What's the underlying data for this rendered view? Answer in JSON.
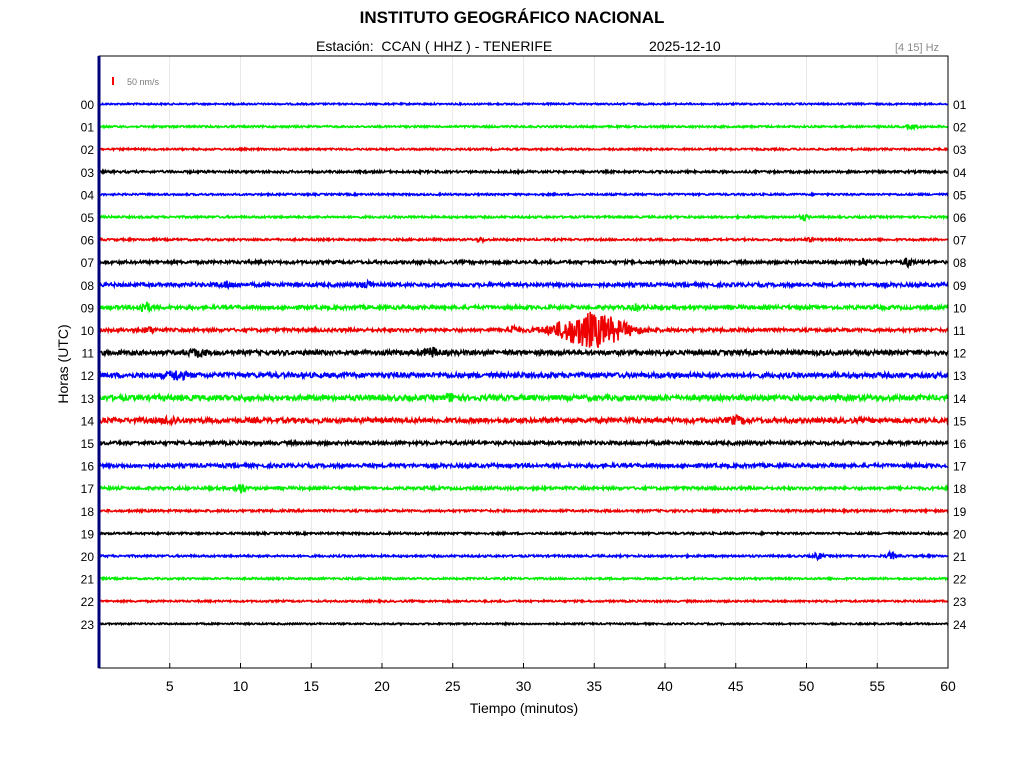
{
  "header": {
    "title": "INSTITUTO GEOGRÁFICO NACIONAL",
    "station_line": "Estación:  CCAN ( HHZ ) - TENERIFE",
    "date": "2025-12-10",
    "filter": "[4 15] Hz"
  },
  "chart_data": {
    "type": "line",
    "title": "INSTITUTO GEOGRÁFICO NACIONAL",
    "subtitle": "Estación:  CCAN ( HHZ ) - TENERIFE",
    "xlabel": "Tiempo (minutos)",
    "ylabel": "Horas (UTC)",
    "xlim": [
      0,
      60
    ],
    "x_ticks": [
      5,
      10,
      15,
      20,
      25,
      30,
      35,
      40,
      45,
      50,
      55,
      60
    ],
    "left_labels": [
      "00",
      "01",
      "02",
      "03",
      "04",
      "05",
      "06",
      "07",
      "08",
      "09",
      "10",
      "11",
      "12",
      "13",
      "14",
      "15",
      "16",
      "17",
      "18",
      "19",
      "20",
      "21",
      "22",
      "23"
    ],
    "right_labels": [
      "01",
      "02",
      "03",
      "04",
      "05",
      "06",
      "07",
      "08",
      "09",
      "10",
      "11",
      "12",
      "13",
      "14",
      "15",
      "16",
      "17",
      "18",
      "19",
      "20",
      "21",
      "22",
      "23",
      "24"
    ],
    "trace_colors": [
      "#0000ff",
      "#00ee00",
      "#ee0000",
      "#000000"
    ],
    "scale_label": "50 nm/s",
    "scale_color": "#ff0000",
    "grid": true,
    "traces": [
      {
        "hour": "00",
        "color": "#0000ff",
        "noise": 0.8,
        "bursts": []
      },
      {
        "hour": "01",
        "color": "#00ee00",
        "noise": 0.9,
        "bursts": [
          {
            "t": 57.5,
            "amp": 1.5,
            "dur": 0.4
          }
        ]
      },
      {
        "hour": "02",
        "color": "#ee0000",
        "noise": 0.9,
        "bursts": []
      },
      {
        "hour": "03",
        "color": "#000000",
        "noise": 1.1,
        "bursts": []
      },
      {
        "hour": "04",
        "color": "#0000ff",
        "noise": 0.9,
        "bursts": []
      },
      {
        "hour": "05",
        "color": "#00ee00",
        "noise": 1.0,
        "bursts": [
          {
            "t": 49.8,
            "amp": 2.5,
            "dur": 0.3
          }
        ]
      },
      {
        "hour": "06",
        "color": "#ee0000",
        "noise": 1.0,
        "bursts": [
          {
            "t": 27.0,
            "amp": 1.8,
            "dur": 0.3
          },
          {
            "t": 50.2,
            "amp": 2.0,
            "dur": 0.3
          }
        ]
      },
      {
        "hour": "07",
        "color": "#000000",
        "noise": 1.5,
        "bursts": [
          {
            "t": 54.0,
            "amp": 4.0,
            "dur": 0.3
          },
          {
            "t": 57.2,
            "amp": 4.0,
            "dur": 0.3
          }
        ]
      },
      {
        "hour": "08",
        "color": "#0000ff",
        "noise": 1.8,
        "bursts": [
          {
            "t": 9.0,
            "amp": 2.5,
            "dur": 0.5
          },
          {
            "t": 19.0,
            "amp": 2.5,
            "dur": 0.5
          }
        ]
      },
      {
        "hour": "09",
        "color": "#00ee00",
        "noise": 1.8,
        "bursts": [
          {
            "t": 3.2,
            "amp": 5.0,
            "dur": 0.4
          },
          {
            "t": 38.0,
            "amp": 2.5,
            "dur": 0.4
          }
        ]
      },
      {
        "hour": "10",
        "color": "#ee0000",
        "noise": 1.6,
        "bursts": [
          {
            "t": 3.5,
            "amp": 2.5,
            "dur": 0.4
          },
          {
            "t": 29.2,
            "amp": 4.0,
            "dur": 0.4
          },
          {
            "t": 34.8,
            "amp": 17.0,
            "dur": 2.4
          }
        ]
      },
      {
        "hour": "11",
        "color": "#000000",
        "noise": 2.2,
        "bursts": [
          {
            "t": 7.0,
            "amp": 3.0,
            "dur": 0.6
          },
          {
            "t": 23.5,
            "amp": 4.0,
            "dur": 0.5
          }
        ]
      },
      {
        "hour": "12",
        "color": "#0000ff",
        "noise": 2.4,
        "bursts": [
          {
            "t": 5.5,
            "amp": 4.0,
            "dur": 0.6
          }
        ]
      },
      {
        "hour": "13",
        "color": "#00ee00",
        "noise": 2.6,
        "bursts": [
          {
            "t": 25.0,
            "amp": 3.0,
            "dur": 0.5
          }
        ]
      },
      {
        "hour": "14",
        "color": "#ee0000",
        "noise": 2.4,
        "bursts": [
          {
            "t": 5.0,
            "amp": 3.0,
            "dur": 0.5
          },
          {
            "t": 45.0,
            "amp": 3.0,
            "dur": 0.5
          }
        ]
      },
      {
        "hour": "15",
        "color": "#000000",
        "noise": 1.7,
        "bursts": []
      },
      {
        "hour": "16",
        "color": "#0000ff",
        "noise": 1.8,
        "bursts": []
      },
      {
        "hour": "17",
        "color": "#00ee00",
        "noise": 1.4,
        "bursts": [
          {
            "t": 10.0,
            "amp": 5.0,
            "dur": 0.3
          }
        ]
      },
      {
        "hour": "18",
        "color": "#ee0000",
        "noise": 1.1,
        "bursts": []
      },
      {
        "hour": "19",
        "color": "#000000",
        "noise": 1.0,
        "bursts": []
      },
      {
        "hour": "20",
        "color": "#0000ff",
        "noise": 1.0,
        "bursts": [
          {
            "t": 50.8,
            "amp": 3.0,
            "dur": 0.3
          },
          {
            "t": 56.0,
            "amp": 3.0,
            "dur": 0.3
          }
        ]
      },
      {
        "hour": "21",
        "color": "#00ee00",
        "noise": 0.9,
        "bursts": []
      },
      {
        "hour": "22",
        "color": "#ee0000",
        "noise": 0.9,
        "bursts": []
      },
      {
        "hour": "23",
        "color": "#000000",
        "noise": 0.8,
        "bursts": []
      }
    ]
  }
}
